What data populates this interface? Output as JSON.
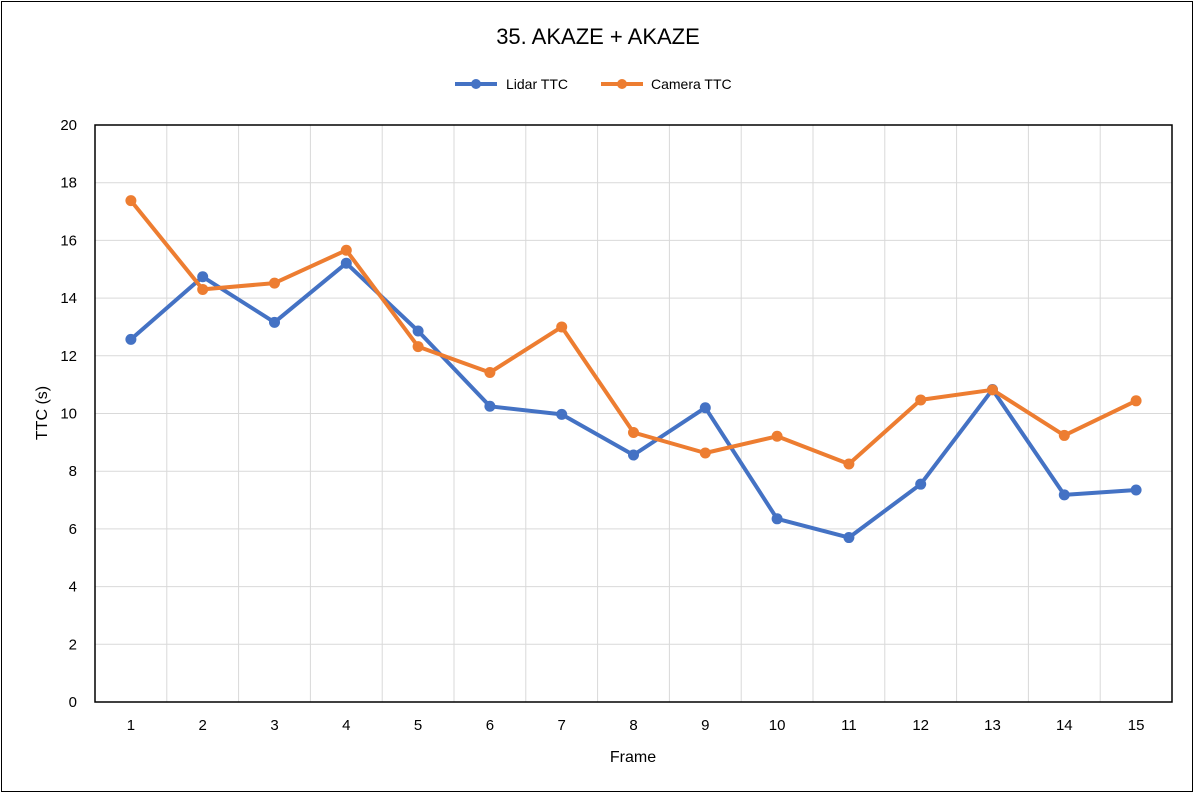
{
  "chart_data": {
    "type": "line",
    "title": "35. AKAZE + AKAZE",
    "xlabel": "Frame",
    "ylabel": "TTC (s)",
    "categories": [
      "1",
      "2",
      "3",
      "4",
      "5",
      "6",
      "7",
      "8",
      "9",
      "10",
      "11",
      "12",
      "13",
      "14",
      "15"
    ],
    "ylim": [
      0,
      20
    ],
    "yticks": [
      0,
      2,
      4,
      6,
      8,
      10,
      12,
      14,
      16,
      18,
      20
    ],
    "grid": true,
    "legend_position": "top",
    "series": [
      {
        "name": "Lidar TTC",
        "color": "#4472C4",
        "values": [
          12.57,
          14.74,
          13.16,
          15.21,
          12.86,
          10.25,
          9.97,
          8.56,
          10.2,
          6.35,
          5.7,
          7.55,
          10.83,
          7.18,
          7.35
        ]
      },
      {
        "name": "Camera TTC",
        "color": "#ED7D31",
        "values": [
          17.38,
          14.3,
          14.52,
          15.66,
          12.32,
          11.42,
          13.0,
          9.34,
          8.63,
          9.21,
          8.25,
          10.47,
          10.82,
          9.24,
          10.44
        ]
      }
    ]
  }
}
